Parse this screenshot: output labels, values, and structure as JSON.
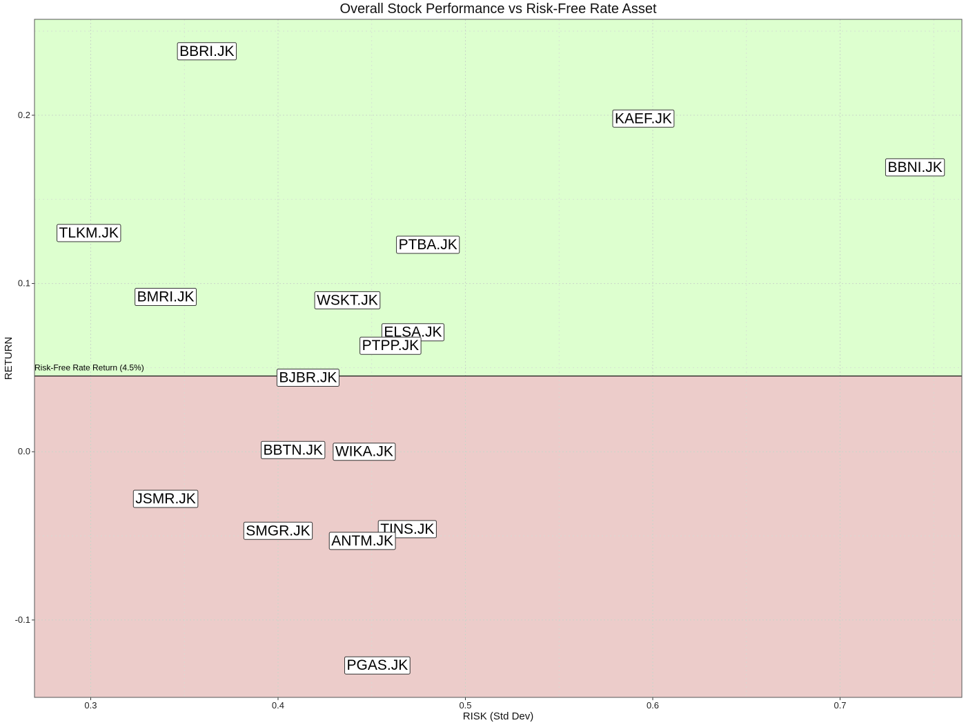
{
  "chart_data": {
    "type": "scatter",
    "title": "Overall Stock Performance vs Risk-Free Rate Asset",
    "xlabel": "RISK (Std Dev)",
    "ylabel": "RETURN",
    "xlim": [
      0.27,
      0.765
    ],
    "ylim": [
      -0.146,
      0.257
    ],
    "xticks": [
      0.3,
      0.4,
      0.5,
      0.6,
      0.7
    ],
    "xtick_labels": [
      "0.3",
      "0.4",
      "0.5",
      "0.6",
      "0.7"
    ],
    "yticks": [
      -0.1,
      0.0,
      0.1,
      0.2
    ],
    "ytick_labels": [
      "-0.1",
      "0.0",
      "0.1",
      "0.2"
    ],
    "grid": true,
    "risk_free_rate": 0.045,
    "risk_free_label": "Risk-Free Rate Return (4.5%)",
    "regions": [
      {
        "region": "above",
        "color": "#ddffcf"
      },
      {
        "region": "below",
        "color": "#ecccca"
      }
    ],
    "points": [
      {
        "label": "BBRI.JK",
        "x": 0.362,
        "y": 0.238
      },
      {
        "label": "KAEF.JK",
        "x": 0.595,
        "y": 0.198
      },
      {
        "label": "BBNI.JK",
        "x": 0.74,
        "y": 0.169
      },
      {
        "label": "TLKM.JK",
        "x": 0.299,
        "y": 0.13
      },
      {
        "label": "PTBA.JK",
        "x": 0.48,
        "y": 0.123
      },
      {
        "label": "BMRI.JK",
        "x": 0.34,
        "y": 0.092
      },
      {
        "label": "WSKT.JK",
        "x": 0.437,
        "y": 0.09
      },
      {
        "label": "ELSA.JK",
        "x": 0.472,
        "y": 0.071
      },
      {
        "label": "PTPP.JK",
        "x": 0.46,
        "y": 0.063
      },
      {
        "label": "BJBR.JK",
        "x": 0.416,
        "y": 0.044
      },
      {
        "label": "BBTN.JK",
        "x": 0.408,
        "y": 0.001
      },
      {
        "label": "WIKA.JK",
        "x": 0.446,
        "y": 0.0
      },
      {
        "label": "JSMR.JK",
        "x": 0.34,
        "y": -0.028
      },
      {
        "label": "SMGR.JK",
        "x": 0.4,
        "y": -0.047
      },
      {
        "label": "TINS.JK",
        "x": 0.469,
        "y": -0.046
      },
      {
        "label": "ANTM.JK",
        "x": 0.445,
        "y": -0.053
      },
      {
        "label": "PGAS.JK",
        "x": 0.453,
        "y": -0.127
      }
    ]
  }
}
